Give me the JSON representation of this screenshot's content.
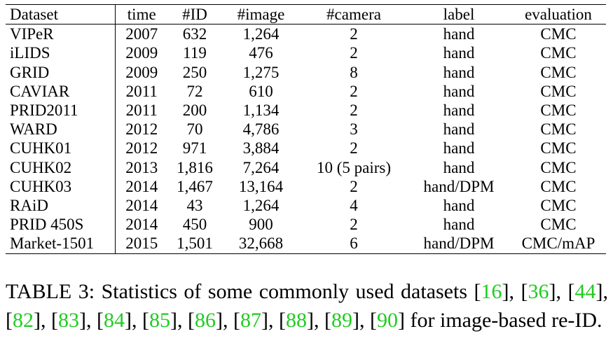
{
  "table": {
    "headers": [
      "Dataset",
      "time",
      "#ID",
      "#image",
      "#camera",
      "label",
      "evaluation"
    ],
    "rows": [
      [
        "VIPeR",
        "2007",
        "632",
        "1,264",
        "2",
        "hand",
        "CMC"
      ],
      [
        "iLIDS",
        "2009",
        "119",
        "476",
        "2",
        "hand",
        "CMC"
      ],
      [
        "GRID",
        "2009",
        "250",
        "1,275",
        "8",
        "hand",
        "CMC"
      ],
      [
        "CAVIAR",
        "2011",
        "72",
        "610",
        "2",
        "hand",
        "CMC"
      ],
      [
        "PRID2011",
        "2011",
        "200",
        "1,134",
        "2",
        "hand",
        "CMC"
      ],
      [
        "WARD",
        "2012",
        "70",
        "4,786",
        "3",
        "hand",
        "CMC"
      ],
      [
        "CUHK01",
        "2012",
        "971",
        "3,884",
        "2",
        "hand",
        "CMC"
      ],
      [
        "CUHK02",
        "2013",
        "1,816",
        "7,264",
        "10 (5 pairs)",
        "hand",
        "CMC"
      ],
      [
        "CUHK03",
        "2014",
        "1,467",
        "13,164",
        "2",
        "hand/DPM",
        "CMC"
      ],
      [
        "RAiD",
        "2014",
        "43",
        "1,264",
        "4",
        "hand",
        "CMC"
      ],
      [
        "PRID 450S",
        "2014",
        "450",
        "900",
        "2",
        "hand",
        "CMC"
      ],
      [
        "Market-1501",
        "2015",
        "1,501",
        "32,668",
        "6",
        "hand/DPM",
        "CMC/mAP"
      ]
    ]
  },
  "caption": {
    "label": "TABLE 3:",
    "text": "Statistics of some commonly used datasets",
    "refs": [
      "16",
      "36",
      "44",
      "82",
      "83",
      "84",
      "85",
      "86",
      "87",
      "88",
      "89",
      "90"
    ],
    "suffix": "for image-based re-ID."
  },
  "colors": {
    "ref_link": "#1fcc1f"
  }
}
